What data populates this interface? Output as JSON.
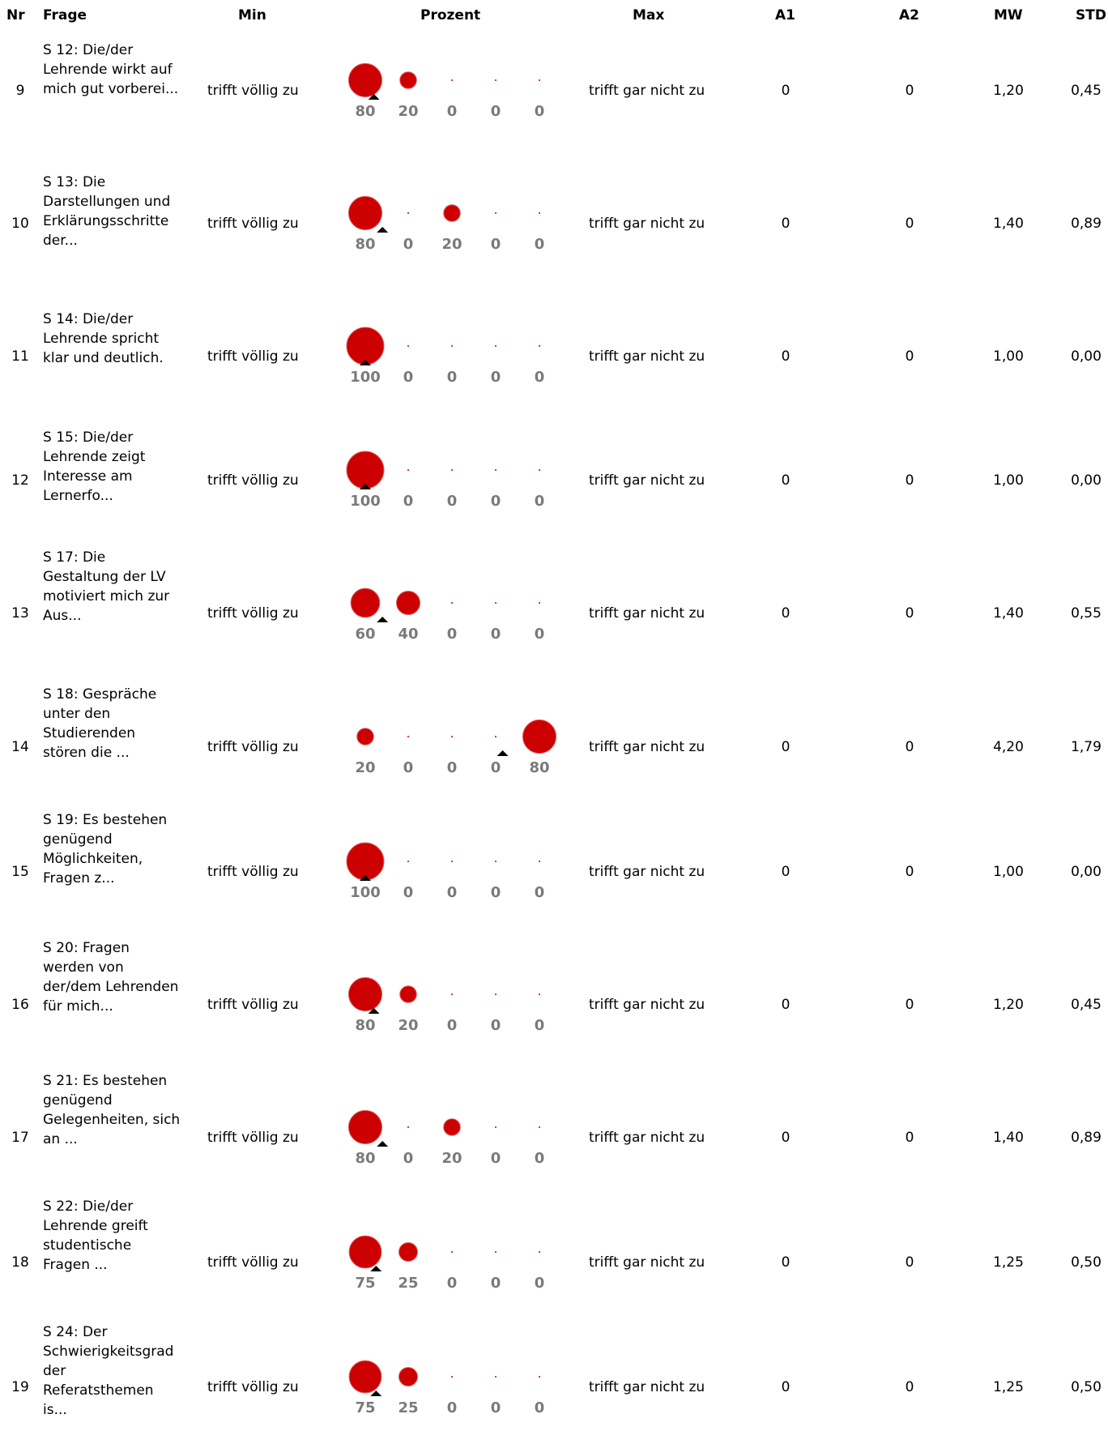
{
  "headers": {
    "nr": "Nr",
    "frage": "Frage",
    "min": "Min",
    "prozent": "Prozent",
    "max": "Max",
    "a1": "A1",
    "a2": "A2",
    "mw": "MW",
    "std": "STD"
  },
  "colors": {
    "bubble": "#cc0000",
    "percent_label": "#7a7a7a",
    "mean_marker": "#000000"
  },
  "chart_data": {
    "type": "bubble-table",
    "scale_positions": [
      1,
      2,
      3,
      4,
      5
    ],
    "rows": [
      {
        "nr": "9",
        "frage": "S 12: Die/der Lehrende wirkt auf mich gut vorberei...",
        "min": "trifft völlig zu",
        "max": "trifft gar nicht zu",
        "percents": [
          80,
          20,
          0,
          0,
          0
        ],
        "a1": "0",
        "a2": "0",
        "mw": "1,20",
        "std": "0,45"
      },
      {
        "nr": "10",
        "frage": "S 13: Die Darstellungen und Erklärungsschritte der...",
        "min": "trifft völlig zu",
        "max": "trifft gar nicht zu",
        "percents": [
          80,
          0,
          20,
          0,
          0
        ],
        "a1": "0",
        "a2": "0",
        "mw": "1,40",
        "std": "0,89"
      },
      {
        "nr": "11",
        "frage": "S 14: Die/der Lehrende spricht klar und deutlich.",
        "min": "trifft völlig zu",
        "max": "trifft gar nicht zu",
        "percents": [
          100,
          0,
          0,
          0,
          0
        ],
        "a1": "0",
        "a2": "0",
        "mw": "1,00",
        "std": "0,00"
      },
      {
        "nr": "12",
        "frage": "S 15: Die/der Lehrende zeigt Interesse am Lernerfo...",
        "min": "trifft völlig zu",
        "max": "trifft gar nicht zu",
        "percents": [
          100,
          0,
          0,
          0,
          0
        ],
        "a1": "0",
        "a2": "0",
        "mw": "1,00",
        "std": "0,00"
      },
      {
        "nr": "13",
        "frage": "S 17: Die Gestaltung der LV motiviert mich zur Aus...",
        "min": "trifft völlig zu",
        "max": "trifft gar nicht zu",
        "percents": [
          60,
          40,
          0,
          0,
          0
        ],
        "a1": "0",
        "a2": "0",
        "mw": "1,40",
        "std": "0,55"
      },
      {
        "nr": "14",
        "frage": "S 18: Gespräche unter den Studierenden stören die ...",
        "min": "trifft völlig zu",
        "max": "trifft gar nicht zu",
        "percents": [
          20,
          0,
          0,
          0,
          80
        ],
        "a1": "0",
        "a2": "0",
        "mw": "4,20",
        "std": "1,79"
      },
      {
        "nr": "15",
        "frage": "S 19: Es bestehen genügend Möglichkeiten, Fragen z...",
        "min": "trifft völlig zu",
        "max": "trifft gar nicht zu",
        "percents": [
          100,
          0,
          0,
          0,
          0
        ],
        "a1": "0",
        "a2": "0",
        "mw": "1,00",
        "std": "0,00"
      },
      {
        "nr": "16",
        "frage": "S 20: Fragen werden von der/dem Lehrenden für mich...",
        "min": "trifft völlig zu",
        "max": "trifft gar nicht zu",
        "percents": [
          80,
          20,
          0,
          0,
          0
        ],
        "a1": "0",
        "a2": "0",
        "mw": "1,20",
        "std": "0,45"
      },
      {
        "nr": "17",
        "frage": "S 21: Es bestehen genügend Gelegenheiten, sich an ...",
        "min": "trifft völlig zu",
        "max": "trifft gar nicht zu",
        "percents": [
          80,
          0,
          20,
          0,
          0
        ],
        "a1": "0",
        "a2": "0",
        "mw": "1,40",
        "std": "0,89"
      },
      {
        "nr": "18",
        "frage": "S 22: Die/der Lehrende greift studentische Fragen ...",
        "min": "trifft völlig zu",
        "max": "trifft gar nicht zu",
        "percents": [
          75,
          25,
          0,
          0,
          0
        ],
        "a1": "0",
        "a2": "0",
        "mw": "1,25",
        "std": "0,50"
      },
      {
        "nr": "19",
        "frage": "S 24: Der Schwierigkeitsgrad der Referatsthemen is...",
        "min": "trifft völlig zu",
        "max": "trifft gar nicht zu",
        "percents": [
          75,
          25,
          0,
          0,
          0
        ],
        "a1": "0",
        "a2": "0",
        "mw": "1,25",
        "std": "0,50"
      }
    ]
  }
}
